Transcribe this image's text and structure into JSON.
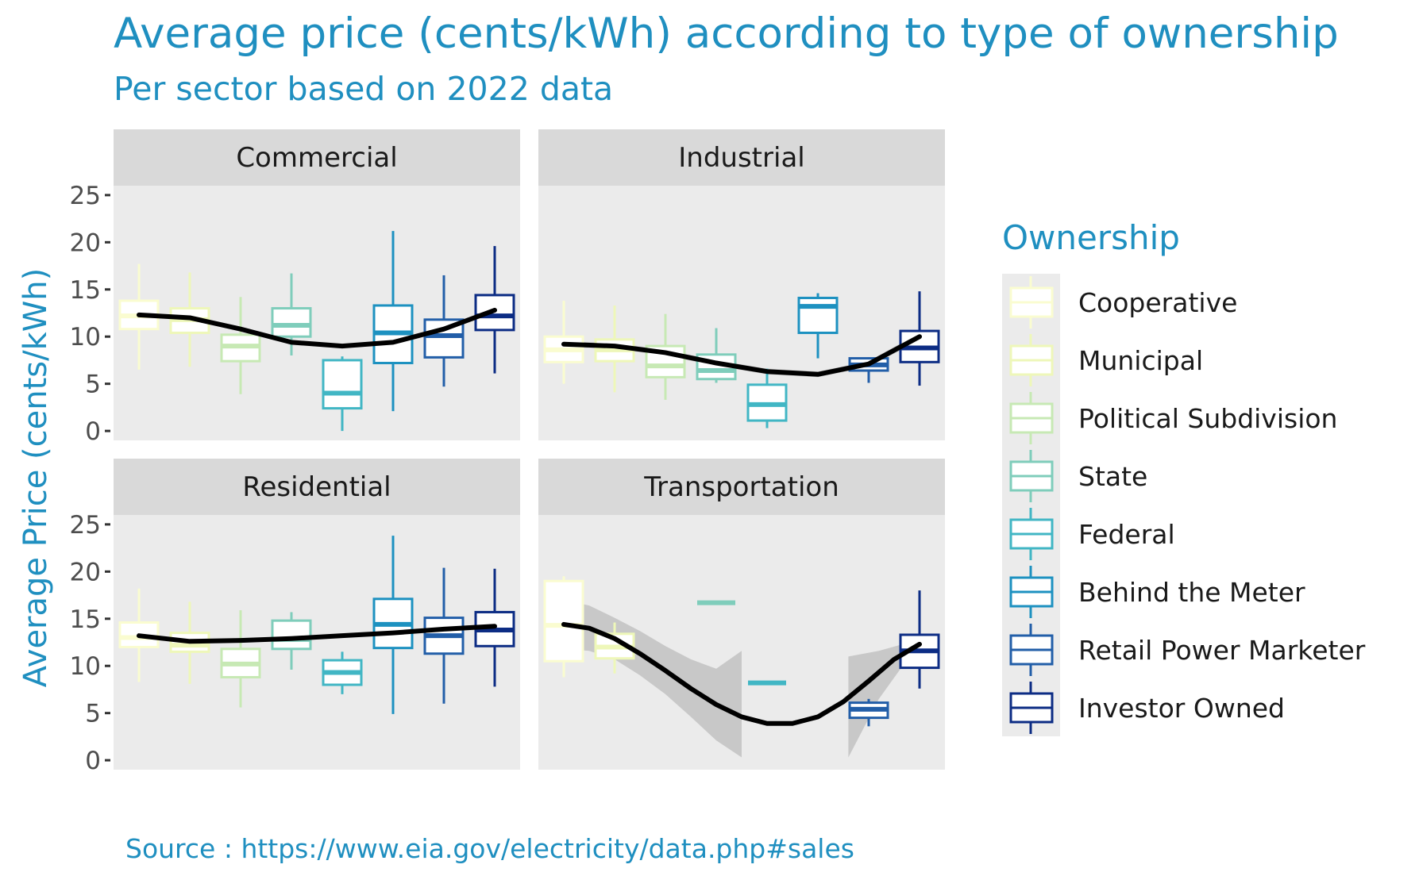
{
  "chart_data": {
    "type": "box",
    "title": "Average price (cents/kWh) according to type of ownership",
    "subtitle": "Per sector based on 2022 data",
    "caption": "Source : https://www.eia.gov/electricity/data.php#sales",
    "ylabel": "Average Price (cents/kWh)",
    "ylim": [
      -1,
      26
    ],
    "yticks": [
      0,
      5,
      10,
      15,
      20,
      25
    ],
    "grid": false,
    "legend": {
      "title": "Ownership",
      "position": "right",
      "entries": [
        "Cooperative",
        "Municipal",
        "Political Subdivision",
        "State",
        "Federal",
        "Behind the Meter",
        "Retail Power Marketer",
        "Investor Owned"
      ],
      "colors": [
        "#fafcd0",
        "#eef7b9",
        "#c7e9b4",
        "#7fcdbb",
        "#41b6c4",
        "#1d91c0",
        "#225ea8",
        "#0c2c84"
      ]
    },
    "panels": [
      {
        "name": "Commercial",
        "boxes": [
          {
            "ownership": "Cooperative",
            "whisker_low": 6.5,
            "q1": 10.8,
            "median": 12.2,
            "q3": 13.8,
            "whisker_high": 17.7
          },
          {
            "ownership": "Municipal",
            "whisker_low": 6.8,
            "q1": 10.4,
            "median": 11.8,
            "q3": 13.0,
            "whisker_high": 16.8
          },
          {
            "ownership": "Political Subdivision",
            "whisker_low": 3.9,
            "q1": 7.4,
            "median": 9.0,
            "q3": 10.2,
            "whisker_high": 14.2
          },
          {
            "ownership": "State",
            "whisker_low": 8.0,
            "q1": 10.0,
            "median": 11.2,
            "q3": 13.0,
            "whisker_high": 16.7
          },
          {
            "ownership": "Federal",
            "whisker_low": 0.0,
            "q1": 2.4,
            "median": 4.0,
            "q3": 7.5,
            "whisker_high": 7.9
          },
          {
            "ownership": "Behind the Meter",
            "whisker_low": 2.1,
            "q1": 7.2,
            "median": 10.4,
            "q3": 13.3,
            "whisker_high": 21.2
          },
          {
            "ownership": "Retail Power Marketer",
            "whisker_low": 4.7,
            "q1": 7.8,
            "median": 10.1,
            "q3": 11.8,
            "whisker_high": 16.5
          },
          {
            "ownership": "Investor Owned",
            "whisker_low": 6.1,
            "q1": 10.7,
            "median": 12.2,
            "q3": 14.4,
            "whisker_high": 19.6
          }
        ],
        "smooth": [
          12.3,
          12.0,
          10.8,
          9.4,
          9.0,
          9.4,
          10.8,
          12.8
        ],
        "smooth_band": [
          0.2,
          0.2,
          0.2,
          0.2,
          0.2,
          0.2,
          0.2,
          0.3
        ]
      },
      {
        "name": "Industrial",
        "boxes": [
          {
            "ownership": "Cooperative",
            "whisker_low": 5.0,
            "q1": 7.3,
            "median": 8.6,
            "q3": 10.0,
            "whisker_high": 13.8
          },
          {
            "ownership": "Municipal",
            "whisker_low": 4.1,
            "q1": 7.4,
            "median": 8.6,
            "q3": 9.7,
            "whisker_high": 13.3
          },
          {
            "ownership": "Political Subdivision",
            "whisker_low": 3.3,
            "q1": 5.7,
            "median": 6.9,
            "q3": 9.0,
            "whisker_high": 12.4
          },
          {
            "ownership": "State",
            "whisker_low": 5.1,
            "q1": 5.5,
            "median": 6.4,
            "q3": 8.1,
            "whisker_high": 10.9
          },
          {
            "ownership": "Federal",
            "whisker_low": 0.3,
            "q1": 1.1,
            "median": 2.8,
            "q3": 4.9,
            "whisker_high": 6.6
          },
          {
            "ownership": "Behind the Meter",
            "whisker_low": 7.7,
            "q1": 10.4,
            "median": 13.2,
            "q3": 14.1,
            "whisker_high": 14.6
          },
          {
            "ownership": "Retail Power Marketer",
            "whisker_low": 5.1,
            "q1": 6.4,
            "median": 7.0,
            "q3": 7.7,
            "whisker_high": 7.8
          },
          {
            "ownership": "Investor Owned",
            "whisker_low": 4.8,
            "q1": 7.3,
            "median": 8.8,
            "q3": 10.6,
            "whisker_high": 14.8
          }
        ],
        "smooth": [
          9.2,
          9.0,
          8.3,
          7.2,
          6.3,
          6.0,
          7.1,
          10.0
        ],
        "smooth_band": [
          0.3,
          0.3,
          0.3,
          0.3,
          0.3,
          0.3,
          0.3,
          0.4
        ]
      },
      {
        "name": "Residential",
        "boxes": [
          {
            "ownership": "Cooperative",
            "whisker_low": 8.3,
            "q1": 12.0,
            "median": 13.0,
            "q3": 14.6,
            "whisker_high": 18.2
          },
          {
            "ownership": "Municipal",
            "whisker_low": 8.1,
            "q1": 11.5,
            "median": 12.2,
            "q3": 13.5,
            "whisker_high": 16.8
          },
          {
            "ownership": "Political Subdivision",
            "whisker_low": 5.6,
            "q1": 8.8,
            "median": 10.2,
            "q3": 11.8,
            "whisker_high": 15.9
          },
          {
            "ownership": "State",
            "whisker_low": 9.6,
            "q1": 11.8,
            "median": 12.8,
            "q3": 14.8,
            "whisker_high": 15.7
          },
          {
            "ownership": "Federal",
            "whisker_low": 7.0,
            "q1": 8.0,
            "median": 9.3,
            "q3": 10.6,
            "whisker_high": 11.5
          },
          {
            "ownership": "Behind the Meter",
            "whisker_low": 4.9,
            "q1": 11.9,
            "median": 14.4,
            "q3": 17.1,
            "whisker_high": 23.8
          },
          {
            "ownership": "Retail Power Marketer",
            "whisker_low": 6.0,
            "q1": 11.3,
            "median": 13.2,
            "q3": 15.1,
            "whisker_high": 20.4
          },
          {
            "ownership": "Investor Owned",
            "whisker_low": 7.8,
            "q1": 12.1,
            "median": 13.8,
            "q3": 15.7,
            "whisker_high": 20.3
          }
        ],
        "smooth": [
          13.2,
          12.6,
          12.7,
          12.9,
          13.2,
          13.5,
          13.9,
          14.2
        ],
        "smooth_band": [
          0.2,
          0.2,
          0.2,
          0.2,
          0.2,
          0.2,
          0.2,
          0.3
        ]
      },
      {
        "name": "Transportation",
        "boxes": [
          {
            "ownership": "Cooperative",
            "whisker_low": 8.8,
            "q1": 10.5,
            "median": 14.3,
            "q3": 19.0,
            "whisker_high": 19.5
          },
          {
            "ownership": "Municipal",
            "whisker_low": 9.2,
            "q1": 10.8,
            "median": 12.0,
            "q3": 13.4,
            "whisker_high": 14.6
          },
          {
            "ownership": "State",
            "whisker_low": 16.7,
            "q1": 16.7,
            "median": 16.7,
            "q3": 16.7,
            "whisker_high": 16.7
          },
          {
            "ownership": "Federal",
            "whisker_low": 8.2,
            "q1": 8.2,
            "median": 8.2,
            "q3": 8.2,
            "whisker_high": 8.2
          },
          {
            "ownership": "Retail Power Marketer",
            "whisker_low": 3.6,
            "q1": 4.5,
            "median": 5.4,
            "q3": 6.1,
            "whisker_high": 6.5
          },
          {
            "ownership": "Investor Owned",
            "whisker_low": 7.6,
            "q1": 9.8,
            "median": 11.6,
            "q3": 13.3,
            "whisker_high": 18.0
          }
        ],
        "smooth_x": [
          1.0,
          1.5,
          2.0,
          2.5,
          3.0,
          3.5,
          4.0,
          4.5,
          5.0,
          5.5,
          6.0,
          6.5,
          7.0,
          7.5,
          8.0
        ],
        "smooth": [
          14.4,
          14.0,
          12.9,
          11.3,
          9.5,
          7.6,
          5.9,
          4.6,
          3.9,
          3.9,
          4.6,
          6.2,
          8.4,
          10.7,
          12.3
        ],
        "smooth_lo": [
          11.8,
          11.6,
          10.7,
          9.0,
          7.0,
          4.6,
          2.1,
          0.3
        ],
        "smooth_hi": [
          17.0,
          16.4,
          15.1,
          13.7,
          12.1,
          10.7,
          9.7,
          11.6
        ],
        "band2_x": [
          6.6,
          7.2,
          7.8,
          8.0
        ],
        "band2_lo": [
          0.3,
          6.5,
          11.0,
          11.9
        ],
        "band2_hi": [
          11.0,
          11.6,
          12.5,
          12.7
        ]
      }
    ]
  }
}
